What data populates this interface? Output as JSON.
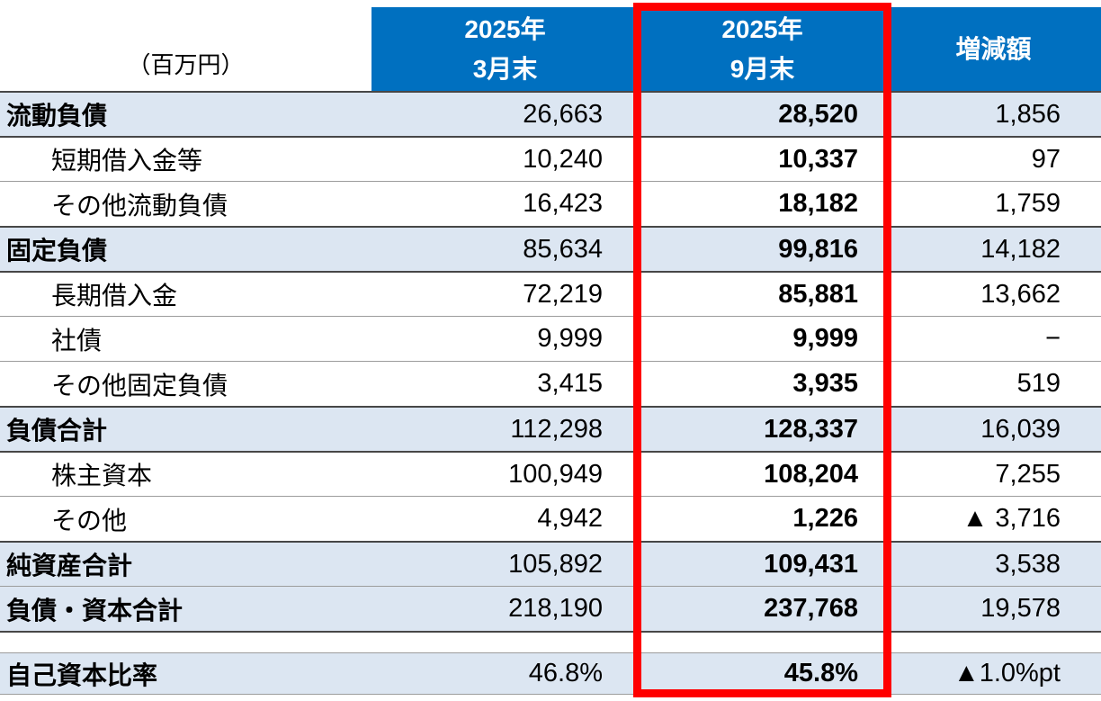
{
  "table": {
    "unit_label": "（百万円）",
    "columns": [
      {
        "line1": "2025年",
        "line2": "3月末"
      },
      {
        "line1": "2025年",
        "line2": "9月末"
      },
      {
        "label": "増減額"
      }
    ],
    "rows": [
      {
        "label": "流動負債",
        "type": "section",
        "mar": "26,663",
        "sep": "28,520",
        "change": "1,856"
      },
      {
        "label": "短期借入金等",
        "type": "sub",
        "mar": "10,240",
        "sep": "10,337",
        "change": "97"
      },
      {
        "label": "その他流動負債",
        "type": "sub",
        "mar": "16,423",
        "sep": "18,182",
        "change": "1,759"
      },
      {
        "label": "固定負債",
        "type": "section",
        "mar": "85,634",
        "sep": "99,816",
        "change": "14,182"
      },
      {
        "label": "長期借入金",
        "type": "sub",
        "mar": "72,219",
        "sep": "85,881",
        "change": "13,662"
      },
      {
        "label": "社債",
        "type": "sub",
        "mar": "9,999",
        "sep": "9,999",
        "change": "−"
      },
      {
        "label": "その他固定負債",
        "type": "sub",
        "mar": "3,415",
        "sep": "3,935",
        "change": "519"
      },
      {
        "label": "負債合計",
        "type": "section",
        "mar": "112,298",
        "sep": "128,337",
        "change": "16,039"
      },
      {
        "label": "株主資本",
        "type": "sub",
        "mar": "100,949",
        "sep": "108,204",
        "change": "7,255"
      },
      {
        "label": "その他",
        "type": "sub",
        "mar": "4,942",
        "sep": "1,226",
        "change": "▲ 3,716"
      },
      {
        "label": "純資産合計",
        "type": "section",
        "mar": "105,892",
        "sep": "109,431",
        "change": "3,538"
      },
      {
        "label": "負債・資本合計",
        "type": "section",
        "mar": "218,190",
        "sep": "237,768",
        "change": "19,578"
      }
    ],
    "footer_row": {
      "label": "自己資本比率",
      "type": "section",
      "mar": "46.8%",
      "sep": "45.8%",
      "change": "▲1.0%pt"
    }
  },
  "colors": {
    "header_blue": "#0070C0",
    "row_light_blue": "#DCE6F2",
    "highlight_red": "#FF0000",
    "negative_marker": "▲"
  }
}
